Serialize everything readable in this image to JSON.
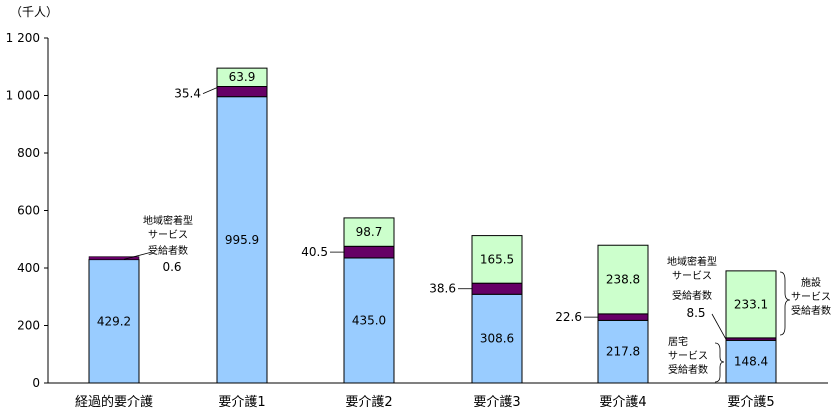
{
  "chart_data": {
    "type": "bar",
    "stacked": true,
    "unit_label": "（千人）",
    "categories": [
      "経過的要介護",
      "要介護1",
      "要介護2",
      "要介護3",
      "要介護4",
      "要介護5"
    ],
    "series": [
      {
        "name": "居宅サービス受給者数",
        "values": [
          429.2,
          995.9,
          435.0,
          308.6,
          217.8,
          148.4
        ],
        "color": "#99ccff"
      },
      {
        "name": "地域密着型サービス受給者数",
        "values": [
          0.6,
          35.4,
          40.5,
          38.6,
          22.6,
          8.5
        ],
        "color": "#660066"
      },
      {
        "name": "施設サービス受給者数",
        "values": [
          0,
          63.9,
          98.7,
          165.5,
          238.8,
          233.1
        ],
        "color": "#ccffcc"
      }
    ],
    "value_labels": {
      "home": [
        "429.2",
        "995.9",
        "435.0",
        "308.6",
        "217.8",
        "148.4"
      ],
      "community": [
        "0.6",
        "35.4",
        "40.5",
        "38.6",
        "22.6",
        "8.5"
      ],
      "facility": [
        "",
        "63.9",
        "98.7",
        "165.5",
        "238.8",
        "233.1"
      ]
    },
    "yticks": [
      "0",
      "200",
      "400",
      "600",
      "800",
      "1 000",
      "1 200"
    ],
    "ylim": [
      0,
      1200
    ],
    "grid": false,
    "annotations": {
      "community_first": {
        "lines": [
          "地域密着型",
          "サービス",
          "受給者数"
        ]
      },
      "community_last": {
        "lines": [
          "地域密着型",
          "サービス",
          "受給者数"
        ]
      },
      "home": {
        "lines": [
          "居宅",
          "サービス",
          "受給者数"
        ]
      },
      "facility": {
        "lines": [
          "施設",
          "サービス",
          "受給者数"
        ]
      }
    }
  }
}
